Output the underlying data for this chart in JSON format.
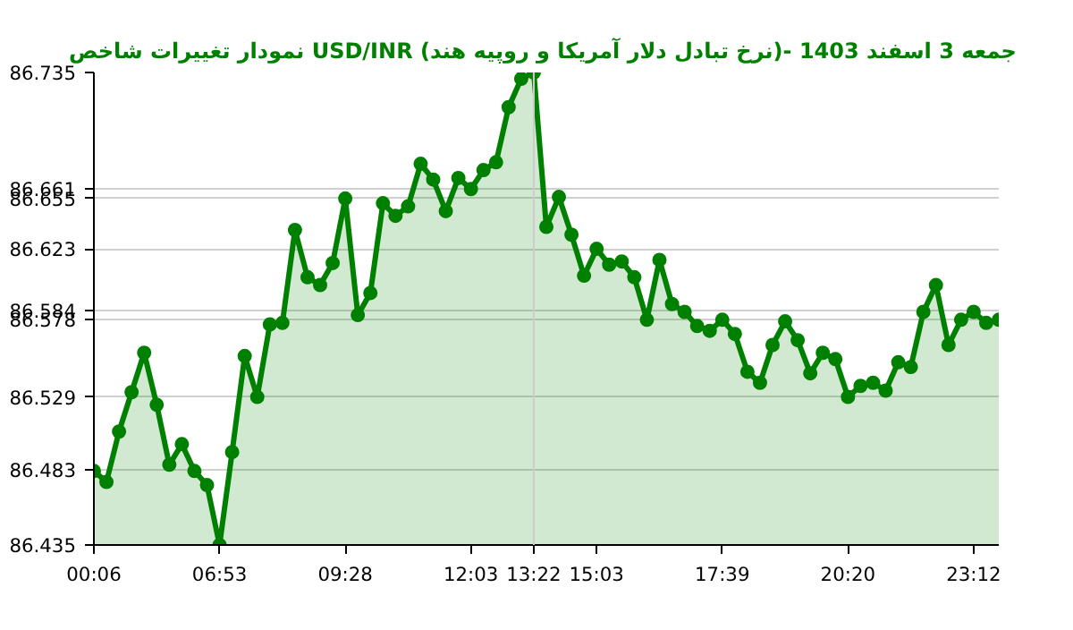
{
  "chart_data": {
    "type": "area",
    "title": "نمودار تغییرات شاخص USD/INR (نرخ تبادل دلار آمریکا و روپیه هند)- جمعه  3 اسفند 1403",
    "categories": [
      "00:06",
      null,
      null,
      null,
      null,
      null,
      null,
      null,
      null,
      null,
      "06:53",
      null,
      null,
      null,
      null,
      null,
      null,
      null,
      null,
      null,
      "09:28",
      null,
      null,
      null,
      null,
      null,
      null,
      null,
      null,
      null,
      "12:03",
      null,
      null,
      null,
      null,
      "13:22",
      null,
      null,
      null,
      null,
      "15:03",
      null,
      null,
      null,
      null,
      null,
      null,
      null,
      null,
      null,
      "17:39",
      null,
      null,
      null,
      null,
      null,
      null,
      null,
      null,
      null,
      "20:20",
      null,
      null,
      null,
      null,
      null,
      null,
      null,
      null,
      null,
      "23:12",
      null,
      null
    ],
    "series": [
      {
        "color": "#008000",
        "values": [
          86.482,
          86.475,
          86.507,
          86.532,
          86.557,
          86.524,
          86.486,
          86.499,
          86.482,
          86.473,
          86.435,
          86.494,
          86.555,
          86.529,
          86.575,
          86.576,
          86.635,
          86.605,
          86.6,
          86.614,
          86.655,
          86.581,
          86.595,
          86.652,
          86.644,
          86.65,
          86.677,
          86.667,
          86.647,
          86.668,
          86.661,
          86.673,
          86.678,
          86.713,
          86.731,
          86.735,
          86.637,
          86.656,
          86.632,
          86.606,
          86.623,
          86.613,
          86.615,
          86.605,
          86.578,
          86.616,
          86.588,
          86.583,
          86.574,
          86.571,
          86.578,
          86.569,
          86.545,
          86.538,
          86.562,
          86.577,
          86.565,
          86.544,
          86.557,
          86.553,
          86.529,
          86.536,
          86.538,
          86.533,
          86.551,
          86.548,
          86.583,
          86.6,
          86.562,
          86.578,
          86.583,
          86.576,
          86.578
        ]
      }
    ],
    "ylim": [
      86.435,
      86.735
    ],
    "yticks": [
      86.435,
      86.483,
      86.529,
      86.578,
      86.584,
      86.623,
      86.655,
      86.661,
      86.735
    ],
    "ref_lines": [
      {
        "axis": "x",
        "value": "13:22",
        "color": "#cccccc"
      }
    ],
    "grid": "y",
    "marker": "circle"
  }
}
